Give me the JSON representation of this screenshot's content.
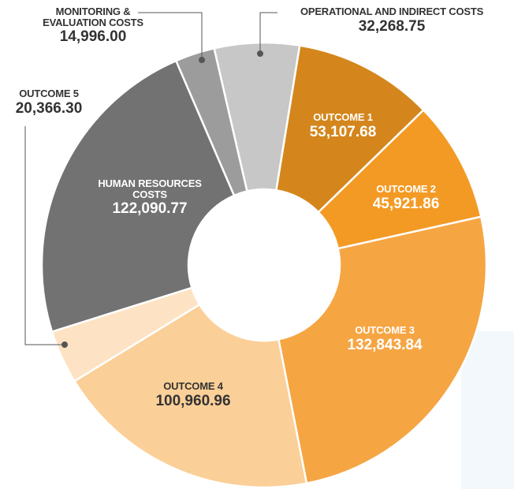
{
  "chart_data": {
    "type": "donut",
    "categories": [
      "OPERATIONAL AND INDIRECT COSTS",
      "OUTCOME 1",
      "OUTCOME 2",
      "OUTCOME 3",
      "OUTCOME 4",
      "OUTCOME 5",
      "HUMAN RESOURCES COSTS",
      "MONITORING & EVALUATION COSTS"
    ],
    "values": [
      32268.75,
      53107.68,
      45921.86,
      132843.84,
      100960.96,
      20366.3,
      122090.77,
      14996.0
    ],
    "value_labels": [
      "32,268.75",
      "53,107.68",
      "45,921.86",
      "132,843.84",
      "100,960.96",
      "20,366.30",
      "122,090.77",
      "14,996.00"
    ],
    "colors": [
      "#c8c7c7",
      "#d4861c",
      "#f39a24",
      "#f6a543",
      "#fbcf98",
      "#fde3c4",
      "#727272",
      "#9c9c9c"
    ]
  }
}
